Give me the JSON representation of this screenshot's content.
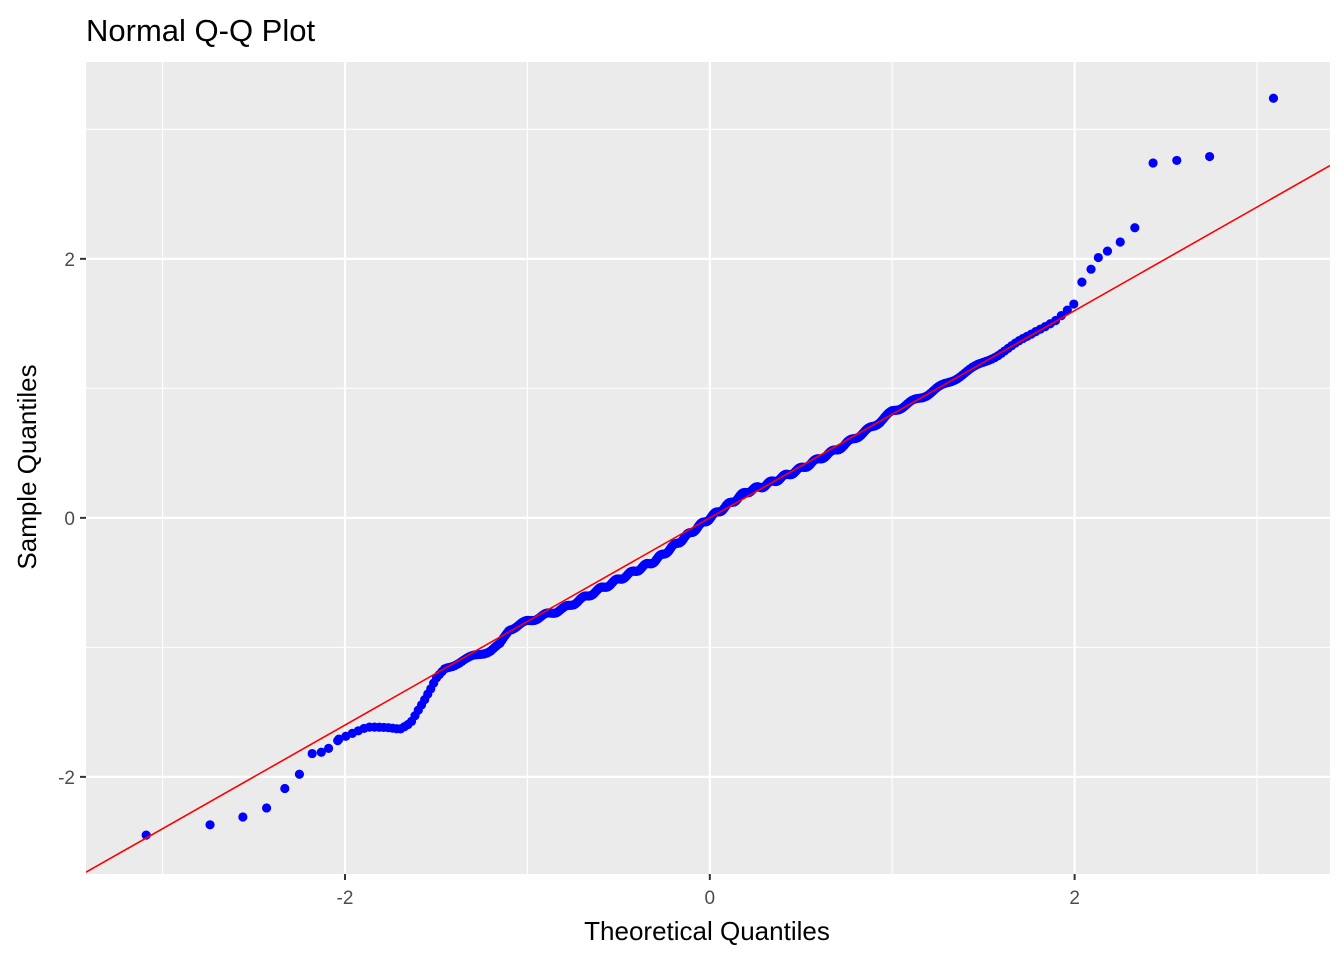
{
  "chart_data": {
    "type": "scatter",
    "title": "Normal Q-Q Plot",
    "xlabel": "Theoretical Quantiles",
    "ylabel": "Sample Quantiles",
    "xlim": [
      -3.42,
      3.4
    ],
    "ylim": [
      -2.75,
      3.52
    ],
    "x_ticks": [
      -2,
      0,
      2
    ],
    "y_ticks": [
      -2,
      0,
      2
    ],
    "x_tick_labels": [
      "-2",
      "0",
      "2"
    ],
    "y_tick_labels": [
      "-2",
      "0",
      "2"
    ],
    "grid": true,
    "colors": {
      "panel": "#EBEBEB",
      "grid": "#FFFFFF",
      "points": "#0000FF",
      "line": "#FF0000"
    },
    "reference_line": {
      "type": "line",
      "intercept": 0.0,
      "slope": 0.8
    },
    "sample_size": 500,
    "tail_points": {
      "x": [
        -3.09,
        -2.74,
        -2.56,
        -2.43,
        -2.33,
        -2.25,
        -2.18,
        -2.13,
        -2.09,
        -2.04,
        2.04,
        2.09,
        2.13,
        2.18,
        2.25,
        2.33,
        2.43,
        2.56,
        2.74,
        3.09
      ],
      "y": [
        -2.45,
        -2.37,
        -2.31,
        -2.24,
        -2.09,
        -1.98,
        -1.82,
        -1.81,
        -1.78,
        -1.72,
        1.82,
        1.92,
        2.01,
        2.06,
        2.13,
        2.24,
        2.74,
        2.76,
        2.79,
        3.24
      ]
    },
    "profile": {
      "x": [
        -2.04,
        -1.95,
        -1.88,
        -1.8,
        -1.7,
        -1.64,
        -1.6,
        -1.57,
        -1.53,
        -1.5,
        -1.45,
        -1.35,
        -1.2,
        -1.15,
        -1.1,
        -1.0,
        -0.8,
        -0.6,
        -0.3,
        0.0,
        0.2,
        0.3,
        0.5,
        0.7,
        0.9,
        1.0,
        1.2,
        1.4,
        1.6,
        1.75,
        1.8,
        1.9,
        2.0
      ],
      "y": [
        -1.7,
        -1.65,
        -1.62,
        -1.63,
        -1.63,
        -1.57,
        -1.48,
        -1.42,
        -1.33,
        -1.25,
        -1.16,
        -1.1,
        -1.02,
        -0.98,
        -0.86,
        -0.8,
        -0.7,
        -0.55,
        -0.33,
        0.0,
        0.2,
        0.25,
        0.38,
        0.53,
        0.71,
        0.82,
        0.96,
        1.12,
        1.28,
        1.4,
        1.45,
        1.54,
        1.66
      ]
    }
  }
}
